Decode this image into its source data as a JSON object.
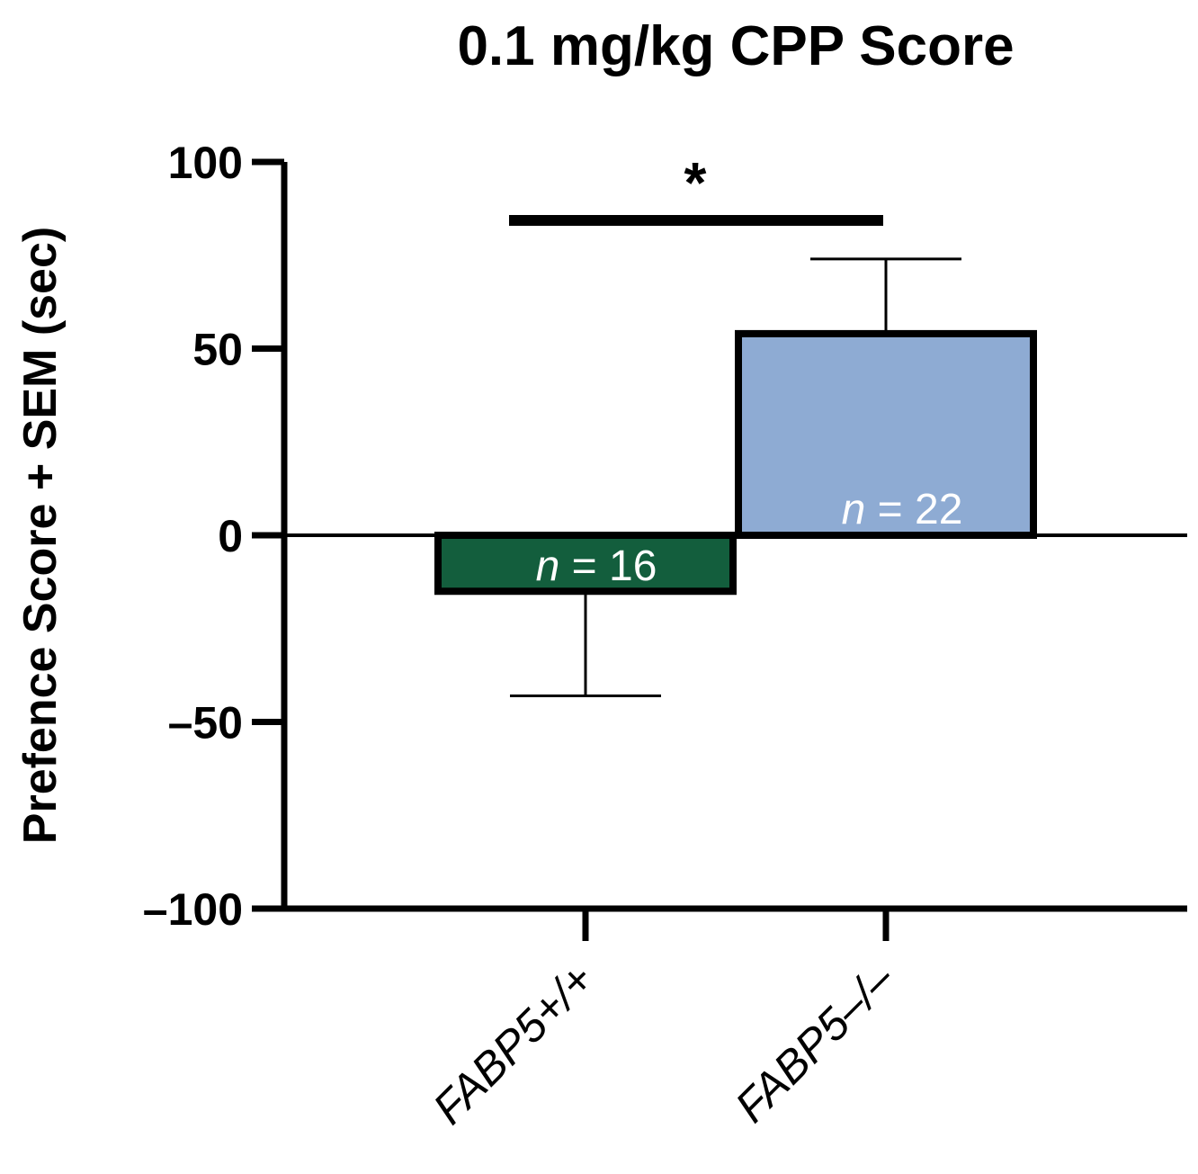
{
  "chart_data": {
    "type": "bar",
    "title": "0.1 mg/kg CPP Score",
    "xlabel": "",
    "ylabel": "Prefence Score + SEM (sec)",
    "ylim": [
      -100,
      100
    ],
    "yticks": [
      {
        "value": 100,
        "label": "100"
      },
      {
        "value": 50,
        "label": "50"
      },
      {
        "value": 0,
        "label": "0"
      },
      {
        "value": -50,
        "label": "–50"
      },
      {
        "value": -100,
        "label": "–100"
      }
    ],
    "categories": [
      "FABP5+/+",
      "FABP5–/–"
    ],
    "values": [
      -15,
      54
    ],
    "sem": [
      28,
      20
    ],
    "n_labels": [
      {
        "italic": "n",
        "rest": " = 16"
      },
      {
        "italic": "n",
        "rest": " = 22"
      }
    ],
    "colors": [
      "#135e3d",
      "#8eabd3"
    ],
    "significance": {
      "label": "*",
      "between": [
        0,
        1
      ]
    },
    "grid": false,
    "legend": "none"
  }
}
